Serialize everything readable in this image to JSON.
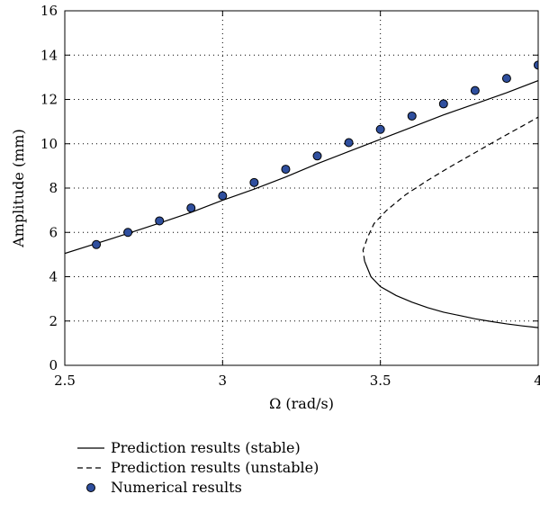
{
  "chart_data": {
    "type": "line",
    "title": "",
    "xlabel": "Ω (rad/s)",
    "ylabel": "Amplitude (mm)",
    "xlim": [
      2.5,
      4.0
    ],
    "ylim": [
      0,
      16
    ],
    "xticks": [
      2.5,
      3.0,
      3.5,
      4.0
    ],
    "xtick_labels": [
      "2.5",
      "3",
      "3.5",
      "4"
    ],
    "yticks": [
      0,
      2,
      4,
      6,
      8,
      10,
      12,
      14,
      16
    ],
    "ytick_labels": [
      "0",
      "2",
      "4",
      "6",
      "8",
      "10",
      "12",
      "14",
      "16"
    ],
    "grid": true,
    "legend_position": "bottom",
    "series": [
      {
        "name": "Prediction results (stable)",
        "style": "solid",
        "color": "#000000",
        "segments": [
          {
            "x": [
              2.5,
              2.6,
              2.7,
              2.8,
              2.9,
              3.0,
              3.1,
              3.2,
              3.25,
              3.3,
              3.4,
              3.5,
              3.6,
              3.7,
              3.8,
              3.9,
              4.0
            ],
            "y": [
              5.05,
              5.5,
              5.95,
              6.42,
              6.9,
              7.45,
              7.95,
              8.5,
              8.8,
              9.1,
              9.65,
              10.2,
              10.75,
              11.3,
              11.8,
              12.3,
              12.85
            ]
          },
          {
            "x": [
              3.45,
              3.47,
              3.5,
              3.55,
              3.6,
              3.65,
              3.7,
              3.75,
              3.8,
              3.85,
              3.9,
              3.95,
              4.0
            ],
            "y": [
              4.7,
              4.0,
              3.55,
              3.15,
              2.85,
              2.6,
              2.4,
              2.25,
              2.1,
              1.98,
              1.87,
              1.78,
              1.7
            ]
          }
        ]
      },
      {
        "name": "Prediction results (unstable)",
        "style": "dashed",
        "color": "#000000",
        "segments": [
          {
            "x": [
              3.45,
              3.445,
              3.46,
              3.48,
              3.52,
              3.58,
              3.65,
              3.72,
              3.8,
              3.88,
              3.95,
              4.0
            ],
            "y": [
              4.7,
              5.2,
              5.8,
              6.4,
              7.0,
              7.7,
              8.35,
              8.95,
              9.6,
              10.25,
              10.8,
              11.2
            ]
          }
        ]
      },
      {
        "name": "Numerical results",
        "style": "markers",
        "color": "#2f4f9e",
        "x": [
          2.6,
          2.7,
          2.8,
          2.9,
          3.0,
          3.1,
          3.2,
          3.3,
          3.4,
          3.5,
          3.6,
          3.7,
          3.8,
          3.9,
          4.0
        ],
        "y": [
          5.45,
          6.0,
          6.52,
          7.1,
          7.65,
          8.25,
          8.85,
          9.45,
          10.05,
          10.65,
          11.25,
          11.8,
          12.4,
          12.95,
          13.55
        ]
      }
    ]
  }
}
